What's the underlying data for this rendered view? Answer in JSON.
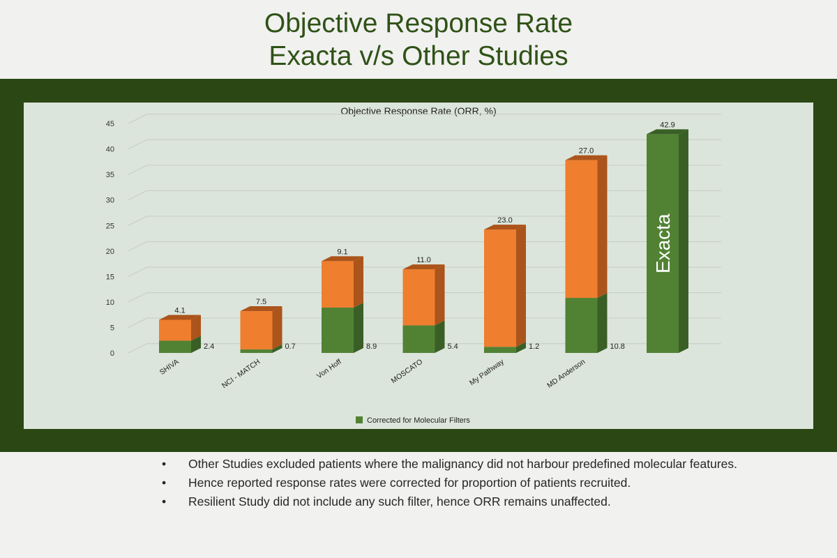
{
  "slide": {
    "title_line1": "Objective Response Rate",
    "title_line2": "Exacta v/s Other Studies"
  },
  "colors": {
    "frame": "#2a4714",
    "panel": "#dce5db",
    "green": "#518234",
    "green_side": "#3a5f26",
    "orange": "#ef7e2e",
    "orange_side": "#ab541b",
    "title": "#2f5216"
  },
  "chart_data": {
    "type": "bar",
    "stacked": true,
    "three_d": true,
    "title": "Objective Response Rate (ORR, %)",
    "categories": [
      "SHIVA",
      "NCI - MATCH",
      "Von Hoff",
      "MOSCATO",
      "My Pathway",
      "MD Anderson",
      ""
    ],
    "series": [
      {
        "name": "Corrected for Molecular Filters",
        "values": [
          2.4,
          0.7,
          8.9,
          5.4,
          1.2,
          10.8,
          42.9
        ],
        "color": "#518234"
      },
      {
        "values": [
          4.1,
          7.5,
          9.1,
          11.0,
          23.0,
          27.0,
          0
        ],
        "color": "#ef7e2e"
      }
    ],
    "top_labels": [
      "4.1",
      "7.5",
      "9.1",
      "11.0",
      "23.0",
      "27.0",
      "42.9"
    ],
    "side_labels": [
      "2.4",
      "0.7",
      "8.9",
      "5.4",
      "1.2",
      "10.8",
      ""
    ],
    "bar_inner_label": {
      "index": 6,
      "text": "Exacta"
    },
    "y_ticks": [
      0,
      5,
      10,
      15,
      20,
      25,
      30,
      35,
      40,
      45
    ],
    "ylim": [
      0,
      45
    ],
    "grid": true,
    "legend": {
      "position": "bottom",
      "entries": [
        "Corrected for Molecular Filters"
      ]
    }
  },
  "notes": {
    "items": [
      "Other Studies excluded patients where the malignancy did not harbour predefined molecular features.",
      "Hence reported response rates were corrected for proportion of patients recruited.",
      "Resilient Study did not include any such filter, hence ORR remains unaffected."
    ],
    "bullet": "•"
  }
}
